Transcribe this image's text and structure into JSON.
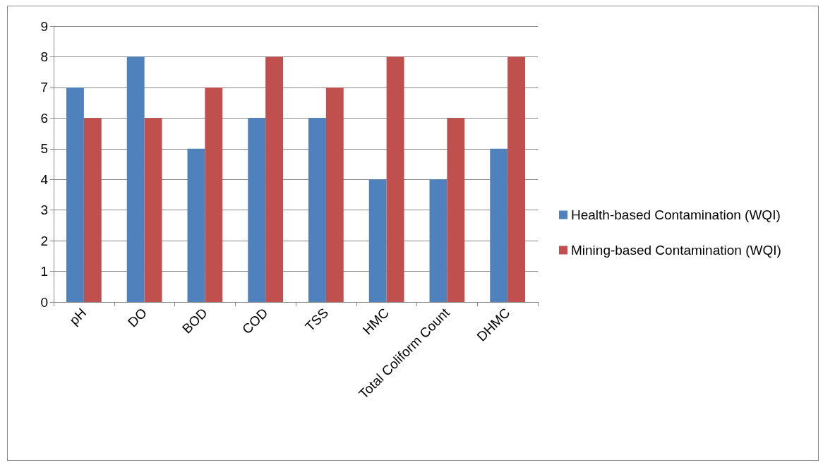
{
  "chart_data": {
    "type": "bar",
    "categories": [
      "pH",
      "DO",
      "BOD",
      "COD",
      "TSS",
      "HMC",
      "Total Coliform Count",
      "DHMC"
    ],
    "series": [
      {
        "name": "Health-based Contamination (WQI)",
        "color": "#4f81bd",
        "values": [
          7,
          8,
          5,
          6,
          6,
          4,
          4,
          5
        ]
      },
      {
        "name": "Mining-based Contamination (WQI)",
        "color": "#c0504d",
        "values": [
          6,
          6,
          7,
          8,
          7,
          8,
          6,
          8
        ]
      }
    ],
    "ylim": [
      0,
      9
    ],
    "yticks": [
      0,
      1,
      2,
      3,
      4,
      5,
      6,
      7,
      8,
      9
    ],
    "grid": "y",
    "legend": "right"
  }
}
